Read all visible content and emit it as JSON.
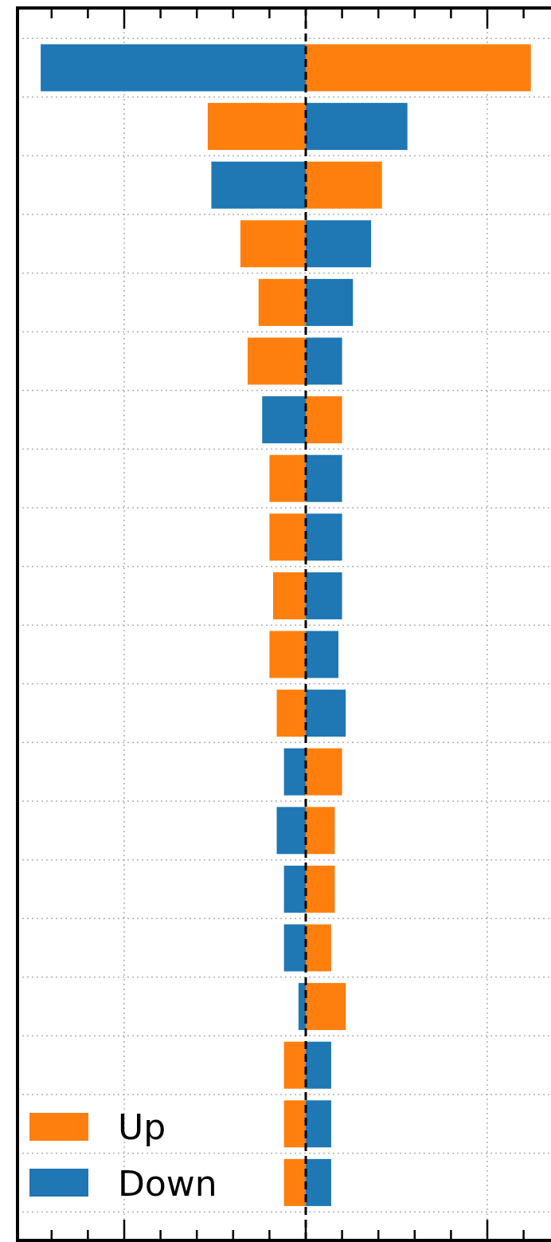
{
  "chart_data": {
    "type": "bar",
    "orientation": "horizontal",
    "title": "",
    "xlabel": "",
    "ylabel": "",
    "xlim": [
      -8.0,
      6.8
    ],
    "center_line": 0,
    "grid": true,
    "legend_position": "bottom-left",
    "rows": [
      {
        "up": 6.2,
        "down": -7.3
      },
      {
        "up": -2.7,
        "down": 2.8
      },
      {
        "up": 2.1,
        "down": -2.6
      },
      {
        "up": -1.8,
        "down": 1.8
      },
      {
        "up": -1.3,
        "down": 1.3
      },
      {
        "up": -1.6,
        "down": 1.0
      },
      {
        "up": 1.0,
        "down": -1.2
      },
      {
        "up": -1.0,
        "down": 1.0
      },
      {
        "up": -1.0,
        "down": 1.0
      },
      {
        "up": -0.9,
        "down": 1.0
      },
      {
        "up": -1.0,
        "down": 0.9
      },
      {
        "up": -0.8,
        "down": 1.1
      },
      {
        "up": 1.0,
        "down": -0.6
      },
      {
        "up": 0.8,
        "down": -0.8
      },
      {
        "up": 0.8,
        "down": -0.6
      },
      {
        "up": 0.7,
        "down": -0.6
      },
      {
        "up": 1.1,
        "down": -0.2
      },
      {
        "up": -0.6,
        "down": 0.7
      },
      {
        "up": -0.6,
        "down": 0.7
      },
      {
        "up": -0.6,
        "down": 0.7
      }
    ],
    "series": [
      {
        "name": "Up",
        "color": "#ff7f0e"
      },
      {
        "name": "Down",
        "color": "#1f77b4"
      }
    ]
  },
  "legend": {
    "up_label": "Up",
    "down_label": "Down"
  }
}
